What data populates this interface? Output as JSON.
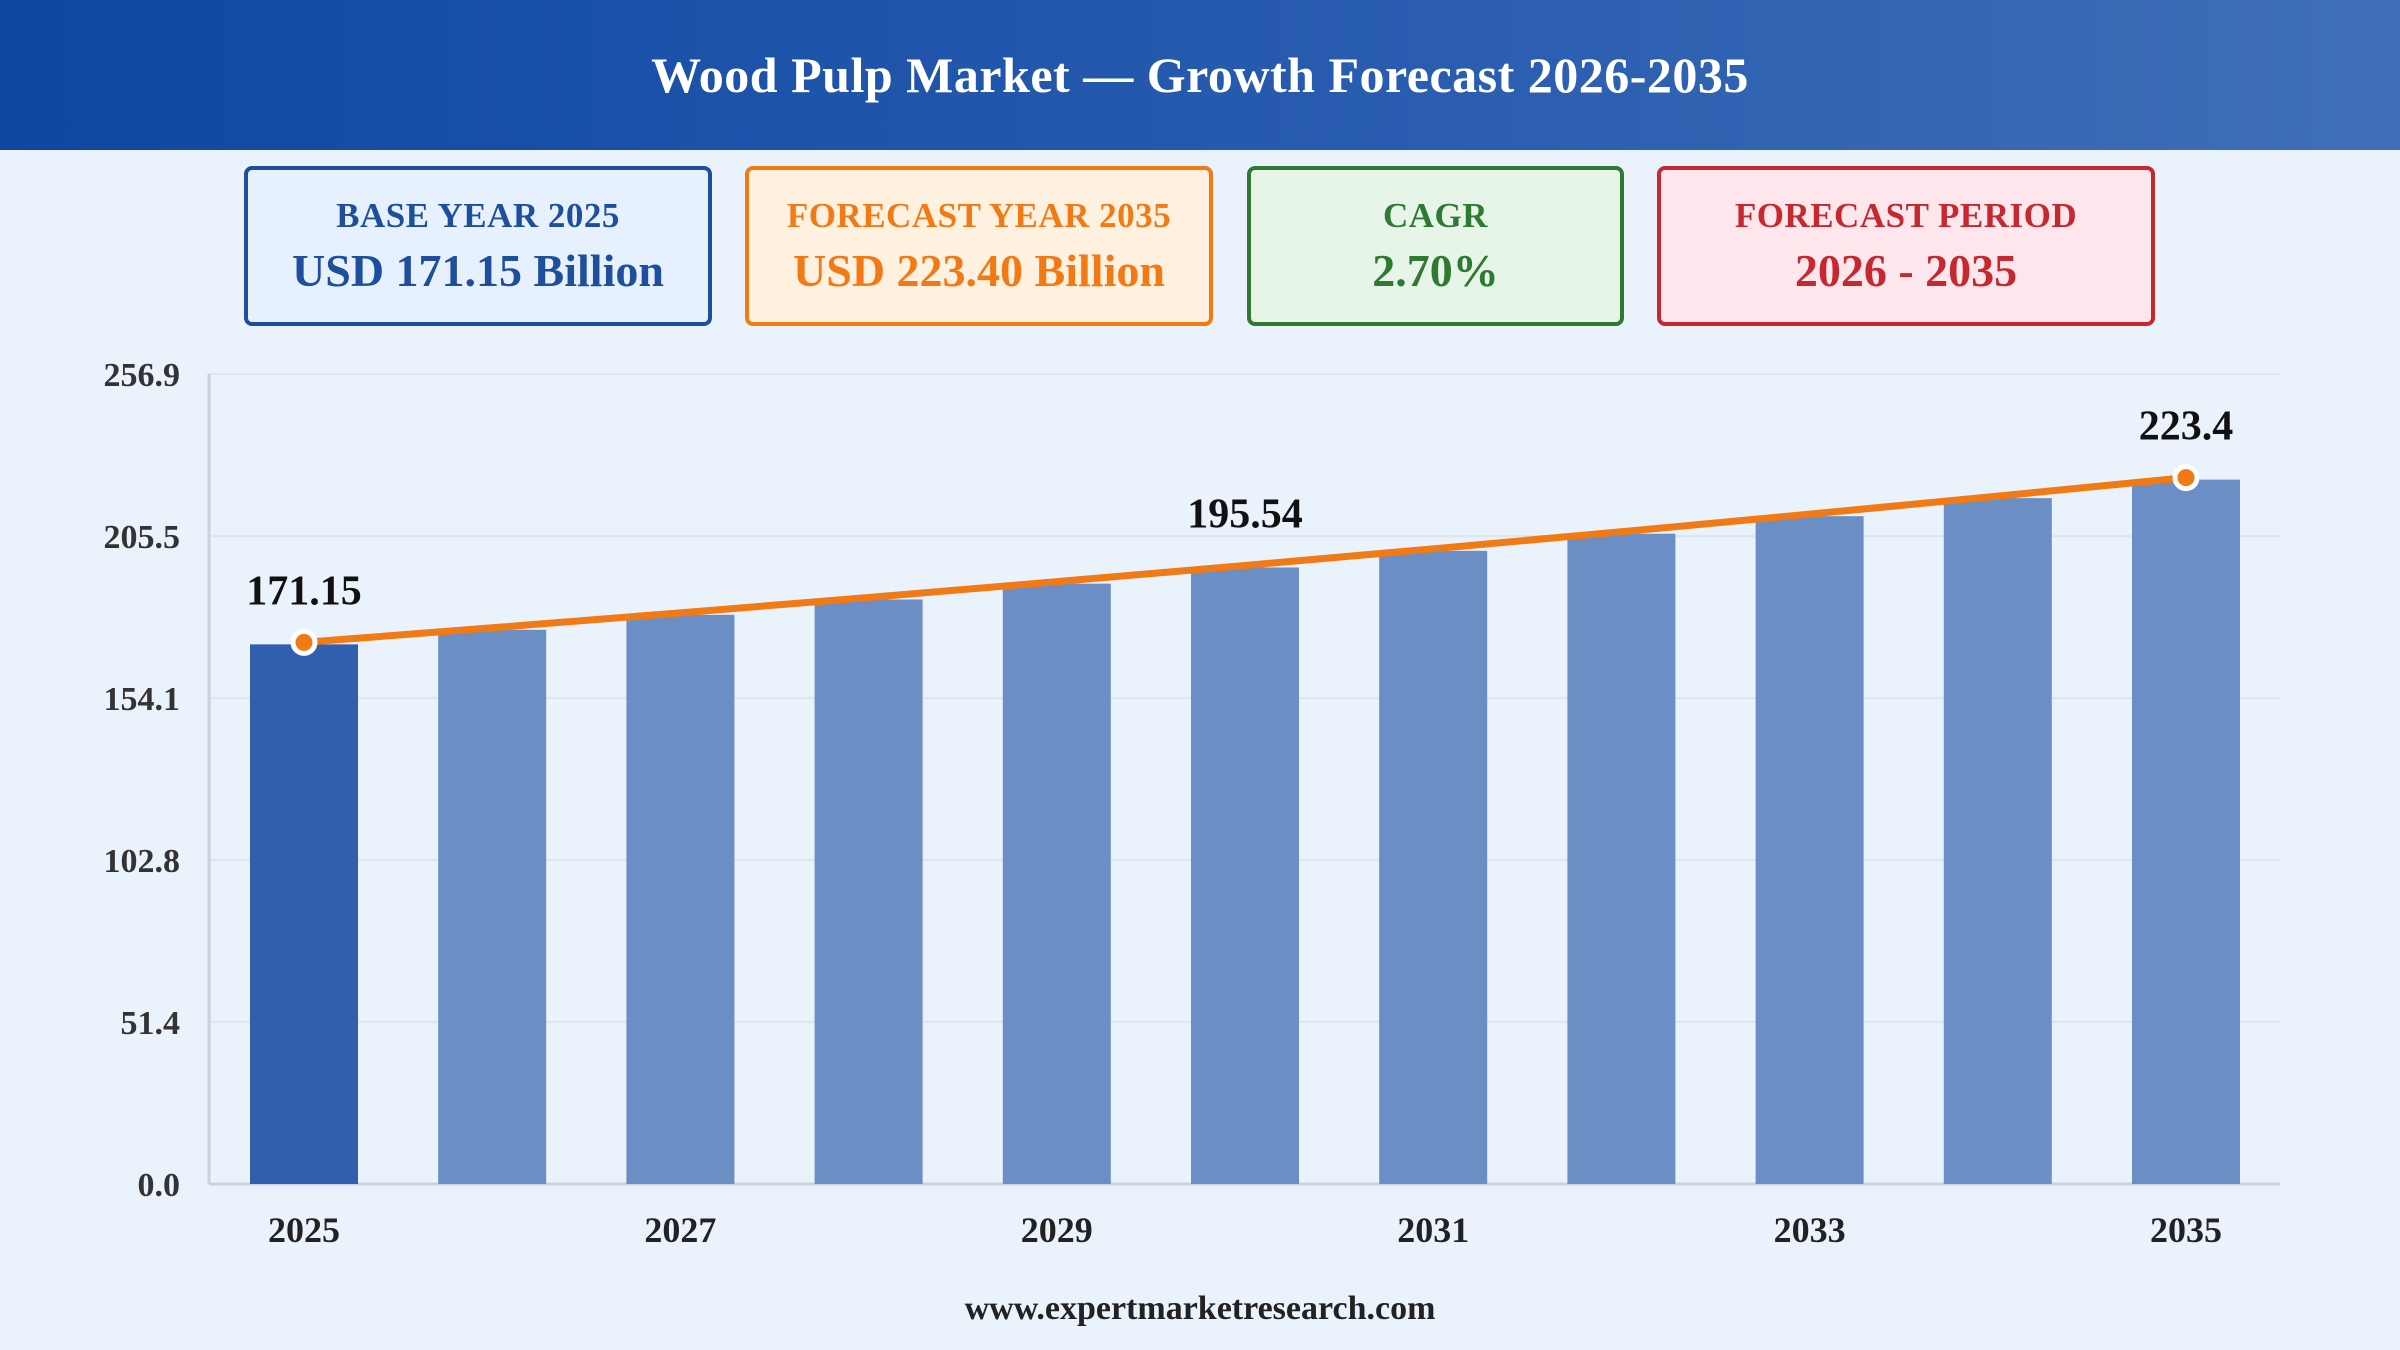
{
  "header": {
    "title": "Wood Pulp Market — Growth Forecast 2026-2035"
  },
  "cards": {
    "base": {
      "label": "BASE YEAR 2025",
      "value": "USD 171.15 Billion"
    },
    "forecast": {
      "label": "FORECAST YEAR 2035",
      "value": "USD 223.40 Billion"
    },
    "cagr": {
      "label": "CAGR",
      "value": "2.70%"
    },
    "period": {
      "label": "FORECAST PERIOD",
      "value": "2026 - 2035"
    }
  },
  "footer": {
    "url": "www.expertmarketresearch.com"
  },
  "colors": {
    "base_bar": "#2f5fae",
    "forecast_bar": "#6b8fc4",
    "trend_line": "#f17a14",
    "grid": "#dde5ef"
  },
  "chart_data": {
    "type": "bar",
    "categories": [
      "2025",
      "2026",
      "2027",
      "2028",
      "2029",
      "2030",
      "2031",
      "2032",
      "2033",
      "2034",
      "2035"
    ],
    "values": [
      171.15,
      175.77,
      180.52,
      185.39,
      190.4,
      195.54,
      200.82,
      206.24,
      211.81,
      217.53,
      223.4
    ],
    "x_tick_labels": [
      "2025",
      "",
      "2027",
      "",
      "2029",
      "",
      "2031",
      "",
      "2033",
      "",
      "2035"
    ],
    "y_ticks": [
      0.0,
      51.4,
      102.8,
      154.1,
      205.5,
      256.9
    ],
    "y_tick_labels": [
      "0.0",
      "51.4",
      "102.8",
      "154.1",
      "205.5",
      "256.9"
    ],
    "ylim": [
      0,
      256.9
    ],
    "data_labels": [
      {
        "index": 0,
        "text": "171.15"
      },
      {
        "index": 5,
        "text": "195.54"
      },
      {
        "index": 10,
        "text": "223.4"
      }
    ],
    "trend_line": true,
    "markers_at": [
      0,
      10
    ],
    "grid": true,
    "title": "",
    "xlabel": "",
    "ylabel": ""
  }
}
